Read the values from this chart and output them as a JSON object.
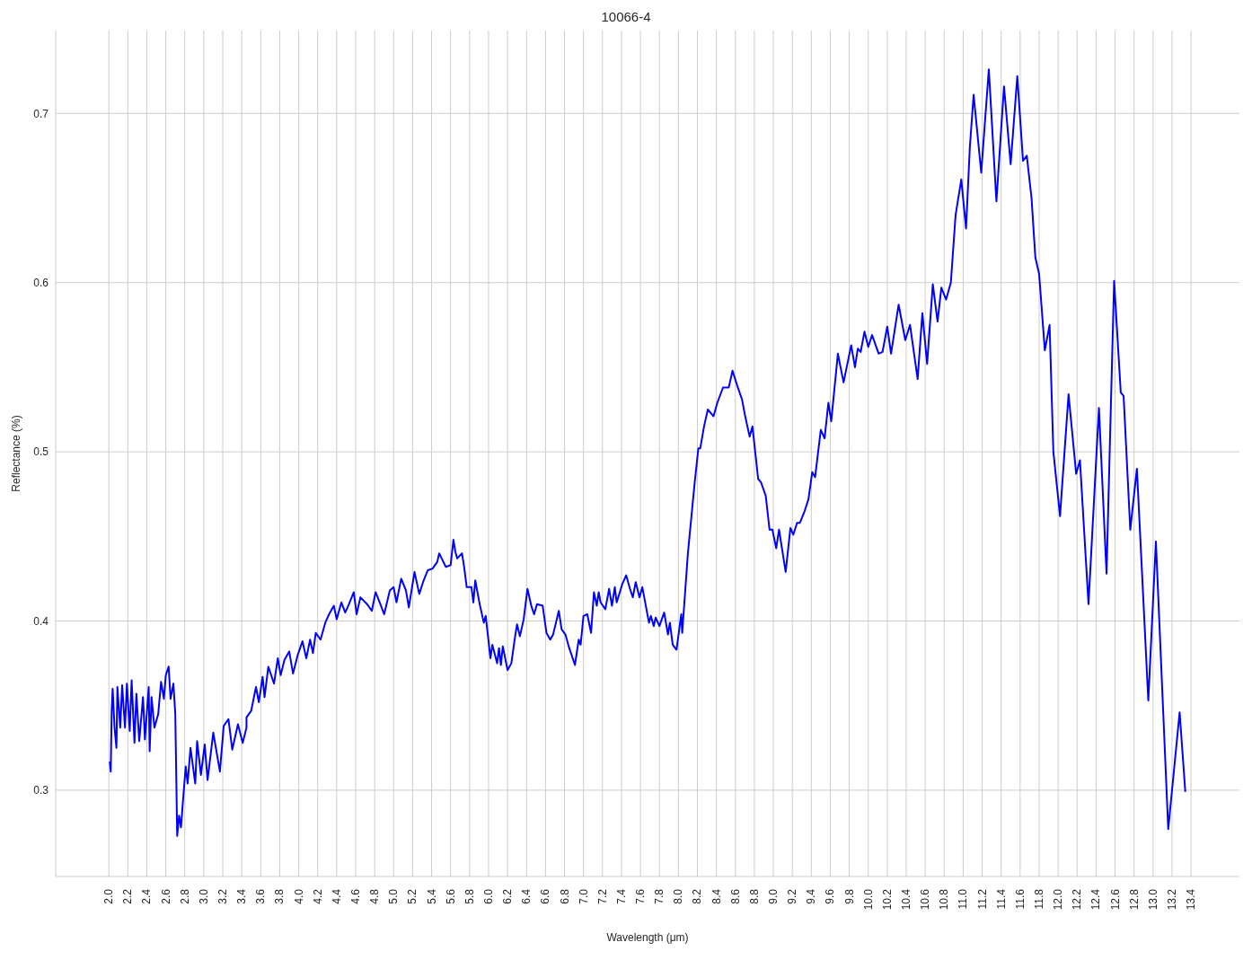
{
  "chart_data": {
    "type": "line",
    "title": "10066-4",
    "xlabel": "Wavelength (μm)",
    "ylabel": "Reflectance (%)",
    "xlim": [
      1.44,
      13.91
    ],
    "ylim": [
      0.249,
      0.749
    ],
    "xticks": [
      {
        "value": 2.0,
        "label": "2.0"
      },
      {
        "value": 2.2,
        "label": "2.2"
      },
      {
        "value": 2.4,
        "label": "2.4"
      },
      {
        "value": 2.6,
        "label": "2.6"
      },
      {
        "value": 2.8,
        "label": "2.8"
      },
      {
        "value": 3.0,
        "label": "3.0"
      },
      {
        "value": 3.2,
        "label": "3.2"
      },
      {
        "value": 3.4,
        "label": "3.4"
      },
      {
        "value": 3.6,
        "label": "3.6"
      },
      {
        "value": 3.8,
        "label": "3.8"
      },
      {
        "value": 4.0,
        "label": "4.0"
      },
      {
        "value": 4.2,
        "label": "4.2"
      },
      {
        "value": 4.4,
        "label": "4.4"
      },
      {
        "value": 4.6,
        "label": "4.6"
      },
      {
        "value": 4.8,
        "label": "4.8"
      },
      {
        "value": 5.0,
        "label": "5.0"
      },
      {
        "value": 5.2,
        "label": "5.2"
      },
      {
        "value": 5.4,
        "label": "5.4"
      },
      {
        "value": 5.6,
        "label": "5.6"
      },
      {
        "value": 5.8,
        "label": "5.8"
      },
      {
        "value": 6.0,
        "label": "6.0"
      },
      {
        "value": 6.2,
        "label": "6.2"
      },
      {
        "value": 6.4,
        "label": "6.4"
      },
      {
        "value": 6.6,
        "label": "6.6"
      },
      {
        "value": 6.8,
        "label": "6.8"
      },
      {
        "value": 7.0,
        "label": "7.0"
      },
      {
        "value": 7.2,
        "label": "7.2"
      },
      {
        "value": 7.4,
        "label": "7.4"
      },
      {
        "value": 7.6,
        "label": "7.6"
      },
      {
        "value": 7.8,
        "label": "7.8"
      },
      {
        "value": 8.0,
        "label": "8.0"
      },
      {
        "value": 8.2,
        "label": "8.2"
      },
      {
        "value": 8.4,
        "label": "8.4"
      },
      {
        "value": 8.6,
        "label": "8.6"
      },
      {
        "value": 8.8,
        "label": "8.8"
      },
      {
        "value": 9.0,
        "label": "9.0"
      },
      {
        "value": 9.2,
        "label": "9.2"
      },
      {
        "value": 9.4,
        "label": "9.4"
      },
      {
        "value": 9.6,
        "label": "9.6"
      },
      {
        "value": 9.8,
        "label": "9.8"
      },
      {
        "value": 10.0,
        "label": "10.0"
      },
      {
        "value": 10.2,
        "label": "10.2"
      },
      {
        "value": 10.4,
        "label": "10.4"
      },
      {
        "value": 10.6,
        "label": "10.6"
      },
      {
        "value": 10.8,
        "label": "10.8"
      },
      {
        "value": 11.0,
        "label": "11.0"
      },
      {
        "value": 11.2,
        "label": "11.2"
      },
      {
        "value": 11.4,
        "label": "11.4"
      },
      {
        "value": 11.6,
        "label": "11.6"
      },
      {
        "value": 11.8,
        "label": "11.8"
      },
      {
        "value": 12.0,
        "label": "12.0"
      },
      {
        "value": 12.2,
        "label": "12.2"
      },
      {
        "value": 12.4,
        "label": "12.4"
      },
      {
        "value": 12.6,
        "label": "12.6"
      },
      {
        "value": 12.8,
        "label": "12.8"
      },
      {
        "value": 13.0,
        "label": "13.0"
      },
      {
        "value": 13.2,
        "label": "13.2"
      },
      {
        "value": 13.4,
        "label": "13.4"
      }
    ],
    "yticks": [
      0.3,
      0.4,
      0.5,
      0.6,
      0.7
    ],
    "grid": true,
    "line_style": "solid",
    "series": [
      {
        "color": "#0000ff",
        "x": [
          2.01,
          2.02,
          2.03,
          2.04,
          2.06,
          2.08,
          2.09,
          2.12,
          2.14,
          2.17,
          2.19,
          2.22,
          2.24,
          2.27,
          2.29,
          2.32,
          2.36,
          2.38,
          2.42,
          2.43,
          2.45,
          2.48,
          2.52,
          2.55,
          2.58,
          2.6,
          2.63,
          2.65,
          2.68,
          2.7,
          2.72,
          2.74,
          2.76,
          2.78,
          2.81,
          2.83,
          2.86,
          2.91,
          2.93,
          2.97,
          3.01,
          3.04,
          3.1,
          3.17,
          3.21,
          3.26,
          3.3,
          3.36,
          3.41,
          3.45,
          3.45,
          3.5,
          3.55,
          3.58,
          3.62,
          3.64,
          3.68,
          3.74,
          3.78,
          3.81,
          3.85,
          3.9,
          3.94,
          3.99,
          4.04,
          4.08,
          4.12,
          4.15,
          4.18,
          4.23,
          4.28,
          4.32,
          4.37,
          4.4,
          4.45,
          4.49,
          4.53,
          4.58,
          4.61,
          4.65,
          4.72,
          4.77,
          4.81,
          4.86,
          4.9,
          4.96,
          5.0,
          5.03,
          5.08,
          5.13,
          5.16,
          5.22,
          5.27,
          5.31,
          5.36,
          5.41,
          5.46,
          5.48,
          5.55,
          5.6,
          5.63,
          5.65,
          5.67,
          5.72,
          5.74,
          5.77,
          5.82,
          5.84,
          5.86,
          5.91,
          5.95,
          5.97,
          6.02,
          6.04,
          6.09,
          6.11,
          6.13,
          6.15,
          6.2,
          6.24,
          6.28,
          6.3,
          6.33,
          6.37,
          6.41,
          6.45,
          6.48,
          6.51,
          6.57,
          6.61,
          6.65,
          6.68,
          6.74,
          6.77,
          6.81,
          6.85,
          6.91,
          6.95,
          6.97,
          7.0,
          7.04,
          7.08,
          7.11,
          7.14,
          7.16,
          7.18,
          7.23,
          7.27,
          7.3,
          7.33,
          7.35,
          7.41,
          7.45,
          7.49,
          7.52,
          7.55,
          7.59,
          7.62,
          7.69,
          7.71,
          7.74,
          7.76,
          7.8,
          7.85,
          7.89,
          7.91,
          7.94,
          7.98,
          8.03,
          8.04,
          8.1,
          8.17,
          8.21,
          8.23,
          8.27,
          8.31,
          8.37,
          8.41,
          8.47,
          8.53,
          8.57,
          8.62,
          8.67,
          8.7,
          8.75,
          8.78,
          8.84,
          8.87,
          8.92,
          8.96,
          8.99,
          9.03,
          9.06,
          9.13,
          9.18,
          9.21,
          9.25,
          9.28,
          9.33,
          9.37,
          9.41,
          9.44,
          9.5,
          9.54,
          9.58,
          9.61,
          9.68,
          9.74,
          9.82,
          9.86,
          9.89,
          9.92,
          9.96,
          10.0,
          10.04,
          10.11,
          10.15,
          10.2,
          10.24,
          10.32,
          10.39,
          10.44,
          10.52,
          10.57,
          10.62,
          10.68,
          10.73,
          10.77,
          10.82,
          10.87,
          10.92,
          10.98,
          11.03,
          11.07,
          11.11,
          11.19,
          11.27,
          11.35,
          11.43,
          11.5,
          11.57,
          11.63,
          11.67,
          11.72,
          11.76,
          11.8,
          11.86,
          11.91,
          11.95,
          12.02,
          12.11,
          12.19,
          12.23,
          12.32,
          12.43,
          12.51,
          12.59,
          12.66,
          12.69,
          12.76,
          12.83,
          12.95,
          13.03,
          13.16,
          13.28,
          13.34
        ],
        "values": [
          0.317,
          0.311,
          0.347,
          0.36,
          0.337,
          0.325,
          0.361,
          0.337,
          0.362,
          0.337,
          0.363,
          0.335,
          0.365,
          0.328,
          0.357,
          0.329,
          0.355,
          0.33,
          0.361,
          0.323,
          0.355,
          0.337,
          0.345,
          0.364,
          0.354,
          0.368,
          0.373,
          0.354,
          0.363,
          0.345,
          0.273,
          0.285,
          0.278,
          0.293,
          0.314,
          0.304,
          0.325,
          0.304,
          0.329,
          0.309,
          0.327,
          0.306,
          0.334,
          0.311,
          0.338,
          0.342,
          0.324,
          0.339,
          0.328,
          0.337,
          0.343,
          0.347,
          0.361,
          0.352,
          0.367,
          0.355,
          0.373,
          0.363,
          0.378,
          0.368,
          0.377,
          0.382,
          0.369,
          0.38,
          0.388,
          0.378,
          0.389,
          0.381,
          0.393,
          0.389,
          0.399,
          0.404,
          0.409,
          0.401,
          0.411,
          0.405,
          0.41,
          0.417,
          0.404,
          0.414,
          0.41,
          0.406,
          0.417,
          0.41,
          0.404,
          0.418,
          0.42,
          0.411,
          0.425,
          0.418,
          0.408,
          0.429,
          0.416,
          0.423,
          0.43,
          0.431,
          0.435,
          0.44,
          0.432,
          0.433,
          0.448,
          0.441,
          0.437,
          0.44,
          0.433,
          0.42,
          0.42,
          0.411,
          0.424,
          0.409,
          0.399,
          0.403,
          0.378,
          0.386,
          0.375,
          0.384,
          0.374,
          0.385,
          0.371,
          0.375,
          0.391,
          0.398,
          0.391,
          0.401,
          0.419,
          0.409,
          0.404,
          0.41,
          0.409,
          0.393,
          0.389,
          0.392,
          0.406,
          0.395,
          0.392,
          0.384,
          0.374,
          0.389,
          0.386,
          0.403,
          0.404,
          0.393,
          0.417,
          0.409,
          0.417,
          0.411,
          0.407,
          0.419,
          0.409,
          0.42,
          0.411,
          0.422,
          0.427,
          0.419,
          0.414,
          0.423,
          0.414,
          0.42,
          0.399,
          0.403,
          0.397,
          0.402,
          0.397,
          0.405,
          0.392,
          0.399,
          0.386,
          0.383,
          0.404,
          0.393,
          0.44,
          0.481,
          0.502,
          0.502,
          0.515,
          0.525,
          0.521,
          0.529,
          0.538,
          0.538,
          0.548,
          0.539,
          0.531,
          0.522,
          0.509,
          0.515,
          0.484,
          0.482,
          0.474,
          0.454,
          0.454,
          0.443,
          0.454,
          0.429,
          0.455,
          0.451,
          0.458,
          0.458,
          0.465,
          0.472,
          0.488,
          0.485,
          0.513,
          0.508,
          0.529,
          0.518,
          0.558,
          0.541,
          0.563,
          0.55,
          0.561,
          0.559,
          0.571,
          0.562,
          0.569,
          0.558,
          0.559,
          0.574,
          0.558,
          0.587,
          0.566,
          0.575,
          0.543,
          0.582,
          0.552,
          0.599,
          0.577,
          0.597,
          0.59,
          0.6,
          0.64,
          0.661,
          0.632,
          0.68,
          0.711,
          0.665,
          0.726,
          0.648,
          0.716,
          0.67,
          0.722,
          0.672,
          0.675,
          0.65,
          0.615,
          0.605,
          0.56,
          0.575,
          0.5,
          0.462,
          0.534,
          0.487,
          0.495,
          0.41,
          0.526,
          0.428,
          0.601,
          0.535,
          0.533,
          0.454,
          0.49,
          0.353,
          0.447,
          0.277,
          0.346,
          0.299
        ]
      }
    ]
  }
}
